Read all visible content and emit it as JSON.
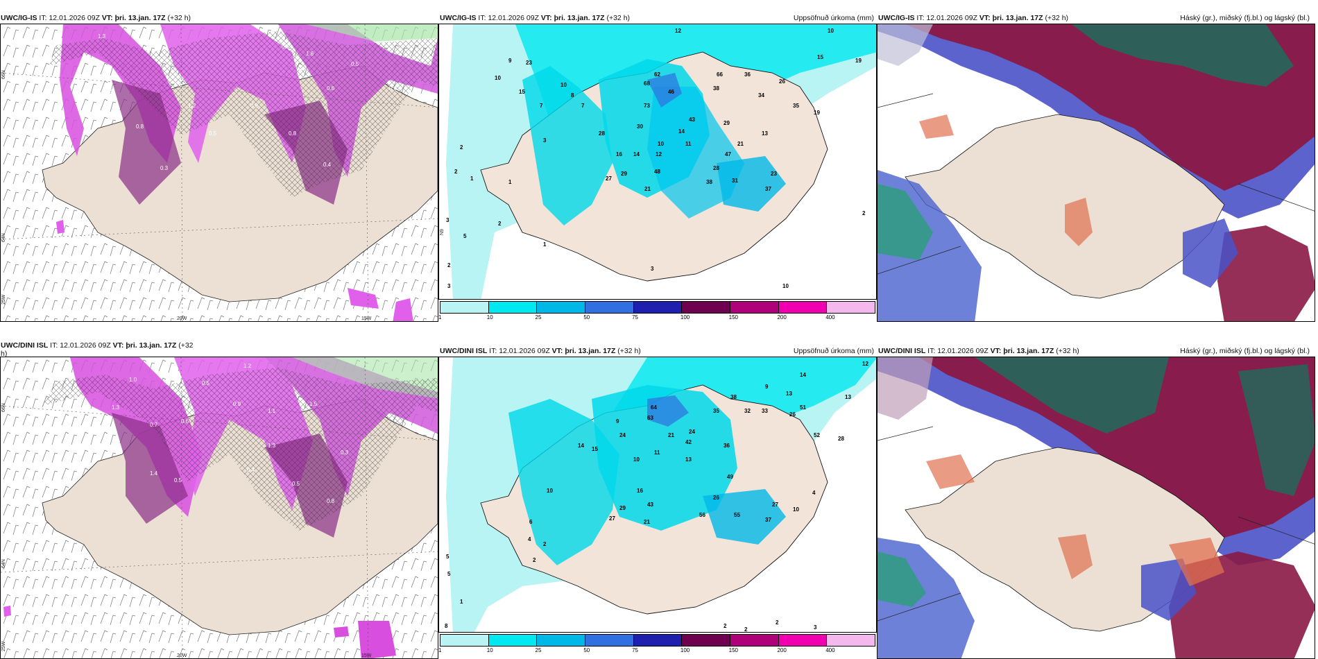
{
  "panels": {
    "tl": {
      "model": "UWC/IG-IS",
      "it_label": "IT:",
      "it": "12.01.2026 09Z",
      "vt_label": "VT:",
      "vt": "þri. 13.jan. 17Z",
      "lead": "(+32 h)",
      "title": ""
    },
    "tm": {
      "model": "UWC/IG-IS",
      "it_label": "IT:",
      "it": "12.01.2026 09Z",
      "vt_label": "VT:",
      "vt": "þri. 13.jan. 17Z",
      "lead": "(+32 h)",
      "title": "Uppsöfnuð úrkoma (mm)"
    },
    "tr": {
      "model": "UWC/IG-IS",
      "it_label": "IT:",
      "it": "12.01.2026 09Z",
      "vt_label": "VT:",
      "vt": "þri. 13.jan. 17Z",
      "lead": "(+32 h)",
      "title": "Háský (gr.), miðský (fj.bl.) og lágský (bl.)"
    },
    "bl": {
      "model": "UWC/DINI ISL",
      "it_label": "IT:",
      "it": "12.01.2026 09Z",
      "vt_label": "VT:",
      "vt": "þri. 13.jan. 17Z",
      "lead": "(+32",
      "lead_wrap": "h)",
      "title": ""
    },
    "bm": {
      "model": "UWC/DINI ISL",
      "it_label": "IT:",
      "it": "12.01.2026 09Z",
      "vt_label": "VT:",
      "vt": "þri. 13.jan. 17Z",
      "lead": "(+32 h)",
      "title": "Uppsöfnuð úrkoma (mm)"
    },
    "br": {
      "model": "UWC/DINI ISL",
      "it_label": "IT:",
      "it": "12.01.2026 09Z",
      "vt_label": "VT:",
      "vt": "þri. 13.jan. 17Z",
      "lead": "(+32 h)",
      "title": "Háský (gr.), miðský (fj.bl.) og lágský (bl.)"
    }
  },
  "axis_labels": {
    "lat66": "66N",
    "lat64": "64N",
    "lon20": "20W",
    "lon15": "15W",
    "lon25": "25W",
    "lat_mid": "N9"
  },
  "legend": {
    "ticks": [
      "1",
      "10",
      "25",
      "50",
      "75",
      "100",
      "150",
      "200",
      "400"
    ],
    "colors": [
      "#b8f4f4",
      "#00e8f0",
      "#00b8e8",
      "#3070e0",
      "#2020b0",
      "#700050",
      "#b0007a",
      "#f000b0",
      "#f4b8ec"
    ]
  },
  "map_labels": {
    "tm": [
      "12",
      "10",
      "15",
      "19",
      "9",
      "10",
      "23",
      "10",
      "8",
      "7",
      "15",
      "62",
      "66",
      "38",
      "36",
      "26",
      "34",
      "35",
      "19",
      "68",
      "46",
      "73",
      "43",
      "29",
      "13",
      "28",
      "30",
      "14",
      "10",
      "11",
      "21",
      "47",
      "12",
      "28",
      "16",
      "14",
      "48",
      "27",
      "29",
      "38",
      "31",
      "23",
      "37",
      "21",
      "3",
      "2",
      "7",
      "1",
      "3",
      "5",
      "2",
      "1",
      "2",
      "2",
      "3",
      "3",
      "1",
      "10",
      "2"
    ],
    "bm": [
      "12",
      "14",
      "13",
      "13",
      "9",
      "38",
      "64",
      "32",
      "26",
      "51",
      "9",
      "24",
      "63",
      "35",
      "33",
      "52",
      "28",
      "36",
      "42",
      "21",
      "24",
      "13",
      "14",
      "15",
      "11",
      "10",
      "49",
      "16",
      "26",
      "43",
      "29",
      "27",
      "55",
      "56",
      "37",
      "27",
      "21",
      "10",
      "4",
      "6",
      "4",
      "10",
      "2",
      "2",
      "5",
      "5",
      "1",
      "8",
      "2",
      "2",
      "2",
      "3"
    ],
    "tl": [
      "1.3",
      "0.5",
      "0.7",
      "1.6",
      "0.6",
      "1.4",
      "0.8",
      "0.4",
      "0.5",
      "1.0",
      "0.9",
      "0.8",
      "1.2",
      "0.6",
      "0.3",
      "0.5"
    ],
    "bl": [
      "1.2",
      "1.0",
      "0.5",
      "0.9",
      "1.1",
      "0.6",
      "1.5",
      "1.3",
      "0.7",
      "0.4",
      "0.5",
      "0.3",
      "1.4",
      "0.8",
      "0.5",
      "1.3"
    ]
  }
}
